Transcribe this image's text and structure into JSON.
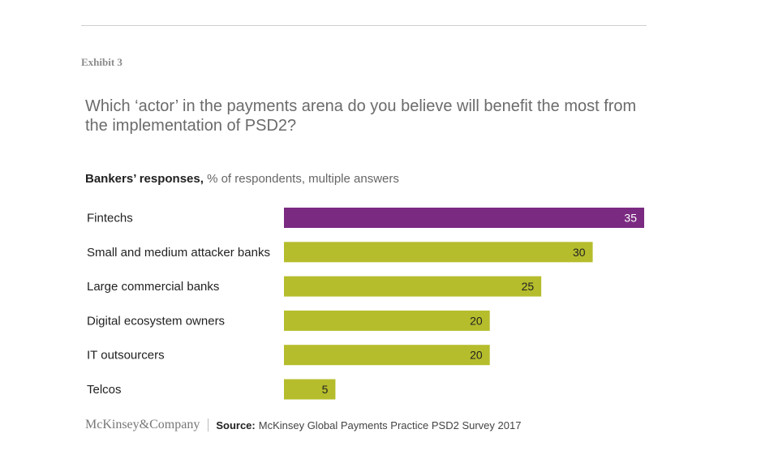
{
  "exhibit": "Exhibit 3",
  "title": "Which ‘actor’ in the payments arena do you believe will benefit the most from the implementation of PSD2?",
  "subtitle": {
    "bold": "Bankers’ responses,",
    "rest": " % of respondents, multiple answers"
  },
  "footer": {
    "logo": "McKinsey&Company",
    "source_label": "Source:",
    "source_text": "McKinsey Global Payments Practice PSD2 Survey 2017"
  },
  "colors": {
    "highlight": "#7b2a82",
    "default": "#b5bd2c",
    "highlight_label": "#ffffff",
    "default_label": "#222222"
  },
  "chart_data": {
    "type": "bar",
    "orientation": "horizontal",
    "categories": [
      "Fintechs",
      "Small and medium attacker banks",
      "Large commercial banks",
      "Digital ecosystem owners",
      "IT outsourcers",
      "Telcos"
    ],
    "values": [
      35,
      30,
      25,
      20,
      20,
      5
    ],
    "highlighted": [
      "Fintechs"
    ],
    "data_labels": true,
    "xlim": [
      0,
      35
    ]
  }
}
